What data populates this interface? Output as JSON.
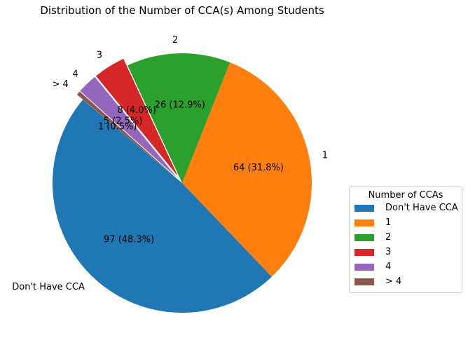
{
  "chart_data": {
    "type": "pie",
    "title": "Distribution of the Number of CCA(s) Among Students",
    "categories": [
      "Don't Have CCA",
      "1",
      "2",
      "3",
      "4",
      "> 4"
    ],
    "values": [
      97,
      64,
      26,
      8,
      5,
      1
    ],
    "percent_labels": [
      "97 (48.3%)",
      "64 (31.8%)",
      "26 (12.9%)",
      "8 (4.0%)",
      "5 (2.5%)",
      "1 (0.5%)"
    ],
    "exploded": [
      false,
      false,
      false,
      true,
      true,
      true
    ],
    "colors": [
      "#1f77b4",
      "#ff7f0e",
      "#2ca02c",
      "#d62728",
      "#9467bd",
      "#8c564b"
    ],
    "legend": {
      "title": "Number of CCAs",
      "placement": "right",
      "entries": [
        "Don't Have CCA",
        "1",
        "2",
        "3",
        "4",
        "> 4"
      ]
    }
  }
}
